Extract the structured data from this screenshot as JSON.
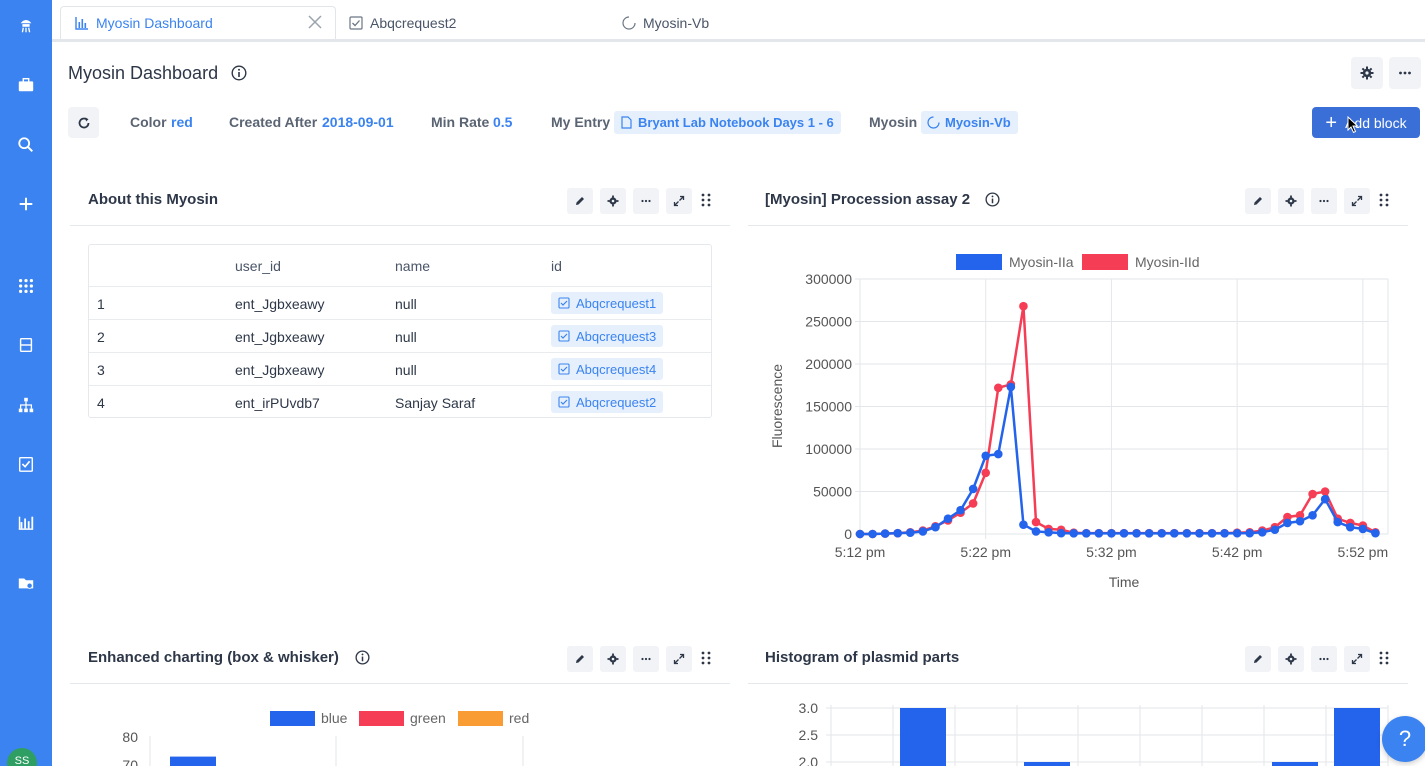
{
  "tabs": [
    {
      "label": "Myosin Dashboard",
      "icon": "bar-chart-icon",
      "active": true
    },
    {
      "label": "Abqcrequest2",
      "icon": "checkbox-icon"
    },
    {
      "label": "Myosin-Vb",
      "icon": "spinner-icon"
    }
  ],
  "header": {
    "title": "Myosin Dashboard"
  },
  "sidebar": {
    "avatar": "SS"
  },
  "filters": {
    "color_label": "Color",
    "color_value": "red",
    "created_label": "Created After",
    "created_value": "2018-09-01",
    "rate_label": "Min Rate",
    "rate_value": "0.5",
    "entry_label": "My Entry",
    "entry_value": "Bryant Lab Notebook Days 1 - 6",
    "myosin_label": "Myosin",
    "myosin_value": "Myosin-Vb"
  },
  "add_block_label": "Add block",
  "about": {
    "title": "About this Myosin",
    "columns": [
      "",
      "user_id",
      "name",
      "id"
    ],
    "rows": [
      {
        "num": "1",
        "user_id": "ent_Jgbxeawy",
        "name": "null",
        "id": "Abqcrequest1"
      },
      {
        "num": "2",
        "user_id": "ent_Jgbxeawy",
        "name": "null",
        "id": "Abqcrequest3"
      },
      {
        "num": "3",
        "user_id": "ent_Jgbxeawy",
        "name": "null",
        "id": "Abqcrequest4"
      },
      {
        "num": "4",
        "user_id": "ent_irPUvdb7",
        "name": "Sanjay Saraf",
        "id": "Abqcrequest2"
      }
    ]
  },
  "procession": {
    "title": "[Myosin] Procession assay 2"
  },
  "boxplot": {
    "title": "Enhanced charting (box & whisker)"
  },
  "histogram": {
    "title": "Histogram of plasmid parts"
  },
  "help_label": "?",
  "chart_data": [
    {
      "type": "line",
      "title": "",
      "xlabel": "Time",
      "ylabel": "Fluorescence",
      "x_ticks": [
        "5:12 pm",
        "5:22 pm",
        "5:32 pm",
        "5:42 pm",
        "5:52 pm"
      ],
      "y_ticks": [
        "0",
        "50000",
        "100000",
        "150000",
        "200000",
        "250000",
        "300000"
      ],
      "ylim": [
        0,
        300000
      ],
      "xlim_minutes_after_5_12": [
        0,
        42
      ],
      "legend_position": "top",
      "grid": true,
      "series": [
        {
          "name": "Myosin-IIa",
          "color": "#2463eb",
          "x": [
            0,
            1,
            2,
            3,
            4,
            5,
            6,
            7,
            8,
            9,
            10,
            11,
            12,
            13,
            14,
            15,
            16,
            17,
            18,
            19,
            20,
            21,
            22,
            23,
            24,
            25,
            26,
            27,
            28,
            29,
            30,
            31,
            32,
            33,
            34,
            35,
            36,
            37,
            38,
            39,
            40,
            41
          ],
          "y": [
            0,
            0,
            500,
            1000,
            1500,
            3000,
            8000,
            18000,
            28000,
            53000,
            92000,
            94000,
            173000,
            11000,
            3000,
            2000,
            1000,
            800,
            800,
            800,
            800,
            800,
            800,
            800,
            800,
            800,
            800,
            800,
            800,
            800,
            900,
            1000,
            2000,
            5000,
            13000,
            15000,
            22000,
            41000,
            14000,
            8000,
            6000,
            1000
          ]
        },
        {
          "name": "Myosin-IId",
          "color": "#f53d55",
          "x": [
            0,
            1,
            2,
            3,
            4,
            5,
            6,
            7,
            8,
            9,
            10,
            11,
            12,
            13,
            14,
            15,
            16,
            17,
            18,
            19,
            20,
            21,
            22,
            23,
            24,
            25,
            26,
            27,
            28,
            29,
            30,
            31,
            32,
            33,
            34,
            35,
            36,
            37,
            38,
            39,
            40,
            41
          ],
          "y": [
            0,
            0,
            500,
            1000,
            2000,
            4000,
            9000,
            16000,
            25000,
            36000,
            72000,
            172000,
            176000,
            268000,
            14000,
            6000,
            5000,
            1500,
            1000,
            1000,
            1000,
            1000,
            1000,
            1000,
            1000,
            1000,
            1000,
            1000,
            1000,
            1000,
            1500,
            2000,
            4000,
            8000,
            20000,
            22000,
            47000,
            50000,
            18000,
            13000,
            10000,
            2000
          ]
        }
      ]
    },
    {
      "type": "bar",
      "title": "",
      "legend": [
        "blue",
        "green",
        "red"
      ],
      "legend_colors": [
        "#2463eb",
        "#f53d55",
        "#f99c34"
      ],
      "legend_position": "top",
      "y_ticks": [
        "80",
        "70"
      ],
      "series": [
        {
          "name": "blue",
          "values": [
            73
          ]
        }
      ]
    },
    {
      "type": "bar",
      "title": "",
      "y_ticks": [
        "3.0",
        "2.5",
        "2.0"
      ],
      "ylim": [
        2.0,
        3.0
      ],
      "values": [
        3.0,
        2.0,
        2.0,
        3.0
      ],
      "color": "#2463eb"
    }
  ]
}
